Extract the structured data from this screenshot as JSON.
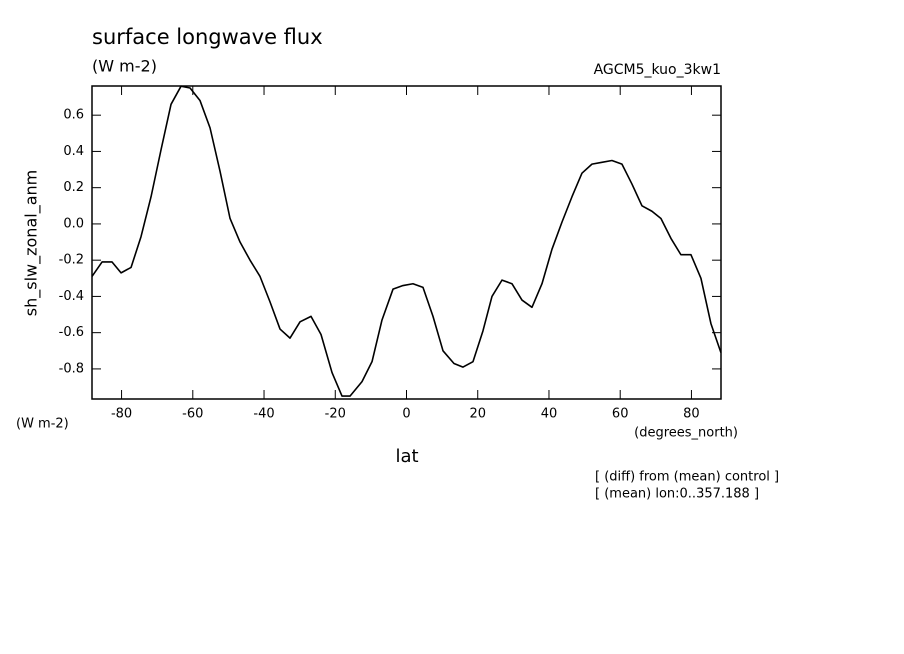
{
  "chart_data": {
    "type": "line",
    "title": "surface longwave flux",
    "units": "(W m-2)",
    "dataset": "AGCM5_kuo_3kw1",
    "ylabel": "sh_slw_zonal_anm",
    "xlabel": "lat",
    "xunits": "(degrees_north)",
    "notes": [
      "[ (diff) from (mean) control ]",
      "[ (mean) lon:0..357.188 ]"
    ],
    "color": "#000000",
    "x": [
      -88.3,
      -85.47,
      -82.67,
      -80.14,
      -77.33,
      -74.53,
      -71.72,
      -68.91,
      -66.11,
      -63.3,
      -60.77,
      -57.96,
      -55.16,
      -52.35,
      -49.54,
      -46.74,
      -43.93,
      -41.12,
      -38.32,
      -35.51,
      -32.7,
      -29.89,
      -26.81,
      -24.0,
      -20.91,
      -18.11,
      -15.86,
      -12.49,
      -9.68,
      -6.88,
      -3.79,
      -0.98,
      1.82,
      4.63,
      7.44,
      10.25,
      13.33,
      15.86,
      18.67,
      21.47,
      24.0,
      26.81,
      29.61,
      32.42,
      35.23,
      38.04,
      40.84,
      43.65,
      46.46,
      49.26,
      52.07,
      54.88,
      57.68,
      60.49,
      63.3,
      66.11,
      68.91,
      71.44,
      74.25,
      77.05,
      79.86,
      82.67,
      85.47,
      88.28
    ],
    "values": [
      -0.29,
      -0.21,
      -0.21,
      -0.27,
      -0.24,
      -0.07,
      0.15,
      0.41,
      0.66,
      0.76,
      0.75,
      0.68,
      0.53,
      0.29,
      0.03,
      -0.1,
      -0.2,
      -0.29,
      -0.43,
      -0.58,
      -0.63,
      -0.54,
      -0.51,
      -0.61,
      -0.82,
      -0.95,
      -0.95,
      -0.87,
      -0.76,
      -0.53,
      -0.36,
      -0.34,
      -0.33,
      -0.35,
      -0.51,
      -0.7,
      -0.77,
      -0.79,
      -0.76,
      -0.59,
      -0.4,
      -0.31,
      -0.33,
      -0.42,
      -0.46,
      -0.33,
      -0.14,
      0.01,
      0.15,
      0.28,
      0.33,
      0.34,
      0.35,
      0.33,
      0.22,
      0.1,
      0.07,
      0.03,
      -0.08,
      -0.17,
      -0.17,
      -0.3,
      -0.55,
      -0.71
    ],
    "xlim": [
      -88.3,
      88.3
    ],
    "ylim": [
      -0.966,
      0.761
    ],
    "xticks": [
      -80,
      -60,
      -40,
      -20,
      0,
      20,
      40,
      60,
      80
    ],
    "yticks": [
      -0.8,
      -0.6,
      -0.4,
      -0.2,
      {
        "value": 0,
        "label": "0.0"
      },
      0.2,
      0.4,
      0.6
    ]
  }
}
